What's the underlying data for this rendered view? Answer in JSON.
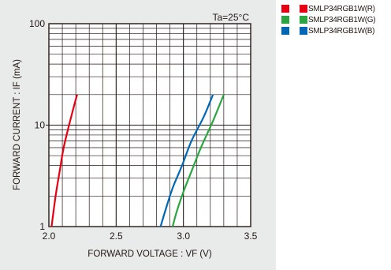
{
  "chart_data": {
    "type": "line",
    "x_scale": "linear",
    "y_scale": "log",
    "xlim": [
      2.0,
      3.5
    ],
    "ylim": [
      1,
      100
    ],
    "x_ticks": [
      "2.0",
      "2.5",
      "3.0",
      "3.5"
    ],
    "y_ticks": [
      "1",
      "10",
      "100"
    ],
    "xlabel": "FORWARD VOLTAGE : VF (V)",
    "ylabel": "FORWARD CURRENT : IF (mA)",
    "annotation": "Ta=25°C",
    "grid": true,
    "legend_position": "outside-top-right",
    "series": [
      {
        "name": "SMLP34RGB1W(R)",
        "color": "#e60012",
        "x": [
          2.02,
          2.05,
          2.08,
          2.11,
          2.15,
          2.19,
          2.21
        ],
        "y": [
          1,
          2,
          3.5,
          6,
          10,
          16,
          20
        ]
      },
      {
        "name": "SMLP34RGB1W(G)",
        "color": "#2aa640",
        "x": [
          2.92,
          2.95,
          3.0,
          3.06,
          3.13,
          3.22,
          3.3
        ],
        "y": [
          1,
          1.4,
          2.2,
          3.5,
          6,
          11,
          20
        ]
      },
      {
        "name": "SMLP34RGB1W(B)",
        "color": "#0068b7",
        "x": [
          2.83,
          2.87,
          2.92,
          2.99,
          3.06,
          3.15,
          3.22
        ],
        "y": [
          1,
          1.5,
          2.4,
          4,
          7,
          12,
          20
        ]
      }
    ]
  }
}
